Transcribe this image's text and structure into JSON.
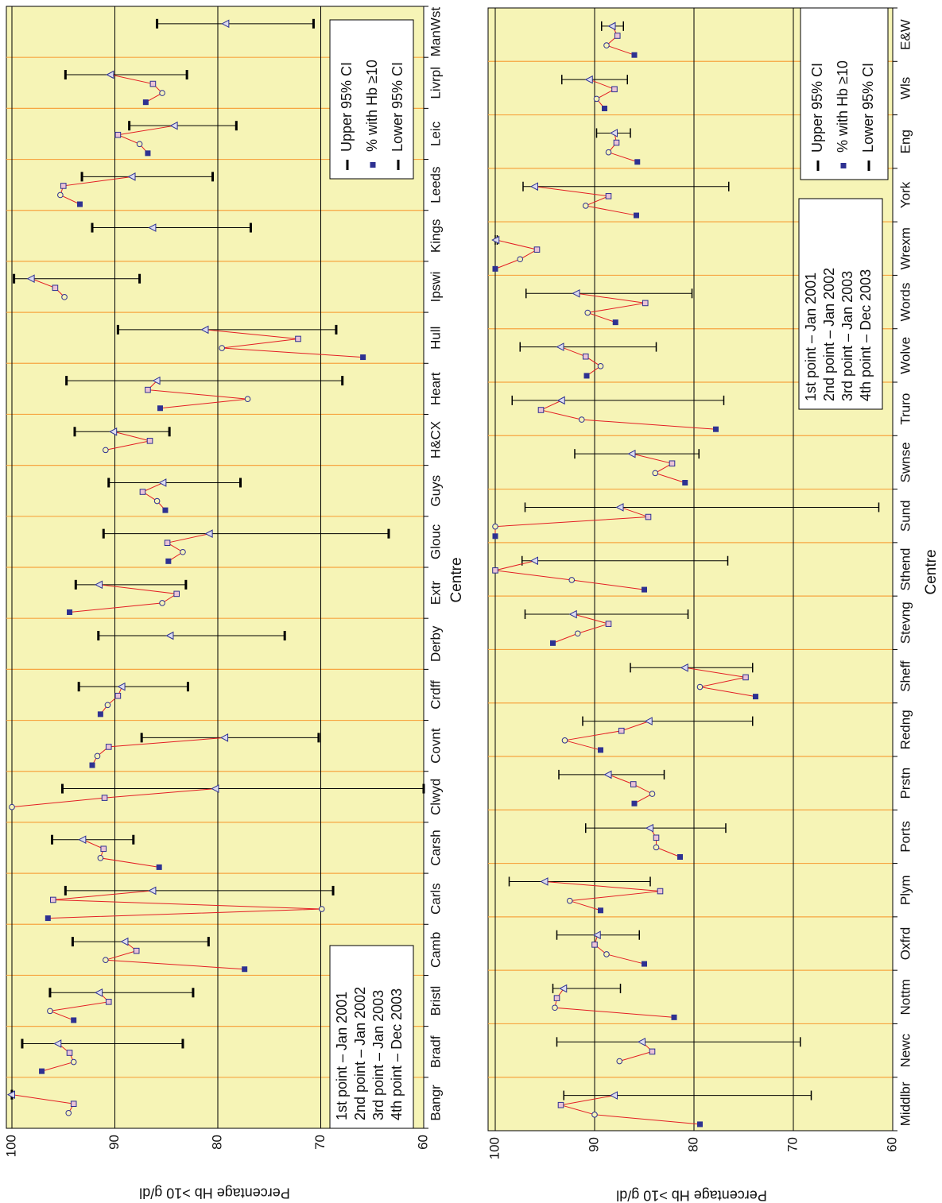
{
  "chart_data": [
    {
      "type": "line",
      "x_label": "Centre",
      "y_label": "Percentage Hb >10 g/dl",
      "categories": [
        "Bangr",
        "Bradf",
        "Bristl",
        "Camb",
        "Carls",
        "Carsh",
        "Clwyd",
        "Covnt",
        "Crdff",
        "Derby",
        "Extr",
        "Glouc",
        "Guys",
        "H&CX",
        "Heart",
        "Hull",
        "Ipswi",
        "Kings",
        "Leeds",
        "Leic",
        "Livrpl",
        "ManWst"
      ],
      "ylim": [
        60,
        100
      ],
      "yticks": [
        60,
        70,
        80,
        90,
        100
      ],
      "grid": true,
      "line_color": "#e31e24",
      "background": "#f6f4b6",
      "band_color": "#f7a541",
      "point_label": "% with Hb ≥10",
      "series": [
        {
          "name": "1st point – Jan 2001",
          "color": "#2e3192",
          "marker": "filled-square",
          "values": [
            null,
            97.1,
            94.0,
            77.4,
            96.5,
            85.7,
            null,
            92.2,
            91.4,
            null,
            94.4,
            84.8,
            85.1,
            null,
            85.6,
            65.9,
            null,
            null,
            93.4,
            86.8,
            87.0,
            null
          ]
        },
        {
          "name": "2nd point – Jan 2002",
          "color": "#2e3192",
          "marker": "circle",
          "values": [
            94.5,
            94.0,
            96.3,
            90.9,
            69.9,
            91.4,
            100,
            91.7,
            90.7,
            null,
            85.4,
            83.4,
            85.9,
            90.9,
            77.1,
            79.6,
            94.9,
            null,
            95.3,
            87.6,
            85.4,
            null
          ]
        },
        {
          "name": "3rd point – Jan 2003",
          "color": "#2e3192",
          "marker": "square",
          "values": [
            94.0,
            94.4,
            90.6,
            87.9,
            96.0,
            91.1,
            91.0,
            90.6,
            89.7,
            null,
            84.0,
            84.9,
            87.3,
            86.6,
            86.8,
            72.2,
            95.8,
            null,
            95.0,
            89.7,
            86.3,
            null
          ]
        },
        {
          "name": "4th point – Dec 2003",
          "color": "#2e3192",
          "marker": "triangle",
          "values": [
            100,
            95.5,
            91.5,
            89.0,
            86.3,
            93.1,
            80.2,
            79.3,
            89.3,
            84.6,
            91.5,
            80.8,
            85.3,
            90.1,
            85.9,
            81.2,
            98.1,
            86.3,
            88.3,
            84.2,
            90.4,
            79.2
          ]
        }
      ],
      "ci_upper": {
        "name": "Upper 95% CI",
        "values": [
          100,
          99.0,
          96.3,
          94.1,
          94.8,
          96.1,
          95.1,
          87.4,
          93.5,
          91.6,
          93.8,
          91.1,
          90.6,
          93.9,
          94.7,
          89.7,
          99.8,
          92.2,
          93.2,
          88.6,
          94.8,
          85.9
        ]
      },
      "ci_lower": {
        "name": "Lower 95% CI",
        "values": [
          100,
          83.4,
          82.4,
          80.9,
          68.8,
          88.2,
          60,
          70.2,
          82.9,
          73.5,
          83.1,
          63.4,
          77.8,
          84.7,
          67.9,
          68.5,
          87.6,
          76.8,
          80.5,
          78.2,
          83.0,
          70.7
        ]
      }
    },
    {
      "type": "line",
      "x_label": "Centre",
      "y_label": "Percentage Hb >10 g/dl",
      "categories": [
        "Middlbr",
        "Newc",
        "Nottm",
        "Oxfrd",
        "Plym",
        "Ports",
        "Prstn",
        "Redng",
        "Sheff",
        "Stevng",
        "Sthend",
        "Sund",
        "Swnse",
        "Truro",
        "Wolve",
        "Words",
        "Wrexm",
        "York",
        "Eng",
        "Wls",
        "E&W"
      ],
      "ylim": [
        60,
        100
      ],
      "yticks": [
        60,
        70,
        80,
        90,
        100
      ],
      "grid": true,
      "line_color": "#e31e24",
      "background": "#f6f4b6",
      "band_color": "#f7a541",
      "point_label": "% with Hb ≥10",
      "series": [
        {
          "name": "1st point – Jan 2001",
          "color": "#2e3192",
          "marker": "filled-square",
          "values": [
            79.4,
            null,
            82.0,
            85.0,
            89.4,
            81.4,
            86.0,
            89.4,
            73.8,
            94.2,
            85.0,
            100,
            80.9,
            77.8,
            90.8,
            87.9,
            100,
            85.8,
            85.7,
            89.0,
            86.0
          ]
        },
        {
          "name": "2nd point – Jan 2002",
          "color": "#2e3192",
          "marker": "circle",
          "values": [
            90.0,
            87.5,
            94.0,
            88.8,
            92.5,
            83.8,
            84.2,
            93.0,
            79.4,
            91.7,
            92.3,
            100,
            83.9,
            91.3,
            89.4,
            90.7,
            97.5,
            90.9,
            88.6,
            89.8,
            88.8
          ]
        },
        {
          "name": "3rd point – Jan 2003",
          "color": "#2e3192",
          "marker": "square",
          "values": [
            93.4,
            84.2,
            93.8,
            90.0,
            83.4,
            83.8,
            86.1,
            87.3,
            74.8,
            88.6,
            100,
            84.6,
            82.2,
            95.4,
            90.9,
            84.9,
            95.8,
            88.6,
            87.8,
            88.0,
            87.7
          ]
        },
        {
          "name": "4th point – Dec 2003",
          "color": "#2e3192",
          "marker": "triangle",
          "values": [
            88.0,
            85.2,
            93.1,
            89.7,
            95.0,
            84.4,
            88.6,
            84.5,
            80.9,
            92.1,
            96.0,
            87.4,
            86.2,
            93.3,
            93.4,
            91.8,
            99.9,
            96.0,
            88.0,
            90.5,
            88.2
          ]
        }
      ],
      "ci_upper": {
        "name": "Upper 95% CI",
        "values": [
          93.1,
          93.8,
          94.2,
          93.8,
          98.6,
          90.9,
          93.6,
          91.2,
          86.4,
          97.0,
          97.3,
          97.0,
          92.0,
          98.3,
          97.5,
          96.9,
          100,
          97.2,
          89.8,
          93.3,
          89.3
        ]
      },
      "ci_lower": {
        "name": "Lower 95% CI",
        "values": [
          68.2,
          69.3,
          87.4,
          85.5,
          84.4,
          76.8,
          83.0,
          74.1,
          74.1,
          80.6,
          76.6,
          61.4,
          79.5,
          77.0,
          83.8,
          80.2,
          99.8,
          76.5,
          86.4,
          86.7,
          87.1
        ]
      }
    }
  ]
}
